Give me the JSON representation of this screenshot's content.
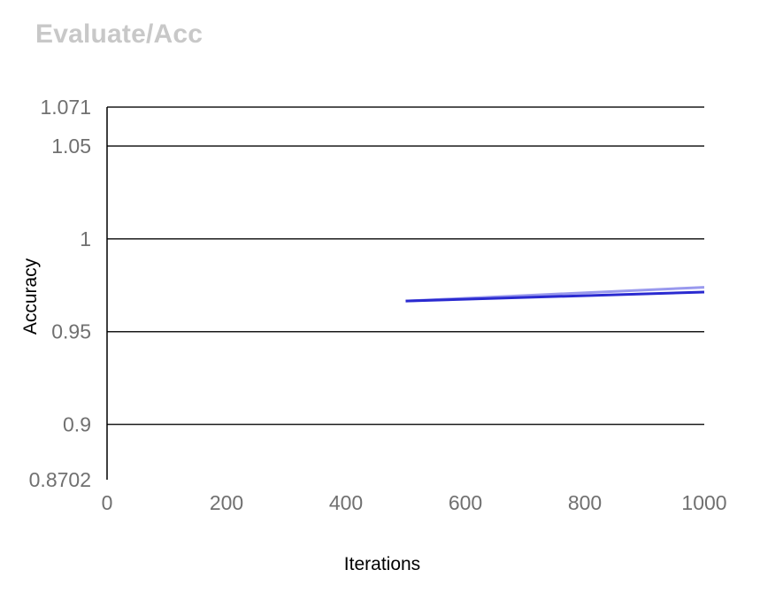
{
  "chart_data": {
    "type": "line",
    "title": "Evaluate/Acc",
    "xlabel": "Iterations",
    "ylabel": "Accuracy",
    "xlim": [
      0,
      1000
    ],
    "ylim": [
      0.8702,
      1.071
    ],
    "xticks": [
      0,
      200,
      400,
      600,
      800,
      1000
    ],
    "yticks": [
      0.8702,
      0.9,
      0.95,
      1,
      1.05,
      1.071
    ],
    "ytick_labels": [
      "0.8702",
      "0.9",
      "0.95",
      "1",
      "1.05",
      "1.071"
    ],
    "grid": "horizontal",
    "series": [
      {
        "color": "#9999ee",
        "points": [
          [
            500,
            0.9665
          ],
          [
            1000,
            0.9739
          ]
        ]
      },
      {
        "color": "#2a2ad0",
        "points": [
          [
            500,
            0.9665
          ],
          [
            1000,
            0.9713
          ]
        ]
      }
    ]
  }
}
